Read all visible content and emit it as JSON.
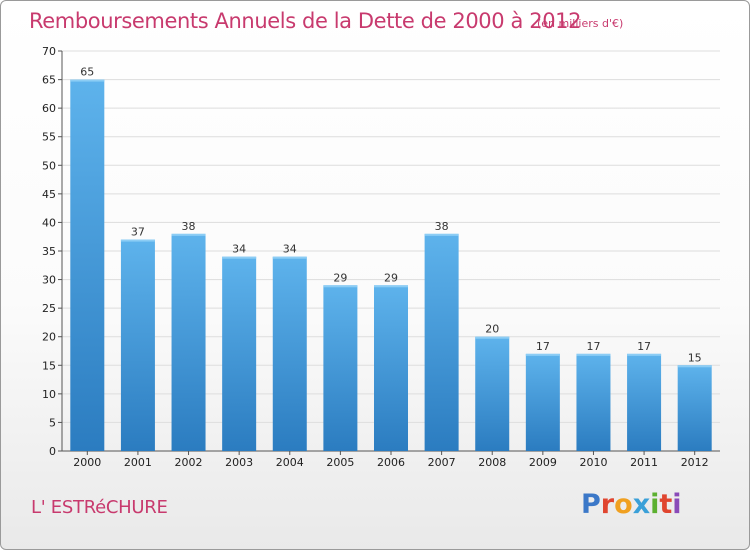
{
  "header": {
    "title": "Remboursements Annuels de la Dette de 2000 à 2012",
    "unit_note": "(en milliers d'€)"
  },
  "footer": {
    "commune": "L' ESTRéCHURE",
    "logo_text": "Proxiti",
    "logo_letter_colors": [
      "#3b78c8",
      "#e0452f",
      "#f0a020",
      "#3aa0d8",
      "#5cb030",
      "#e0452f",
      "#8a4ab8"
    ]
  },
  "colors": {
    "title": "#c83a6e",
    "bar_top": "#5eb3ec",
    "bar_bottom": "#2b7cc0",
    "grid": "#dddddd",
    "axis": "#555555"
  },
  "chart_data": {
    "type": "bar",
    "title": "Remboursements Annuels de la Dette de 2000 à 2012",
    "xlabel": "",
    "ylabel": "",
    "categories": [
      "2000",
      "2001",
      "2002",
      "2003",
      "2004",
      "2005",
      "2006",
      "2007",
      "2008",
      "2009",
      "2010",
      "2011",
      "2012"
    ],
    "values": [
      65,
      37,
      38,
      34,
      34,
      29,
      29,
      38,
      20,
      17,
      17,
      17,
      15
    ],
    "ylim": [
      0,
      70
    ],
    "yticks": [
      0,
      5,
      10,
      15,
      20,
      25,
      30,
      35,
      40,
      45,
      50,
      55,
      60,
      65,
      70
    ],
    "grid": true,
    "legend": "none"
  }
}
